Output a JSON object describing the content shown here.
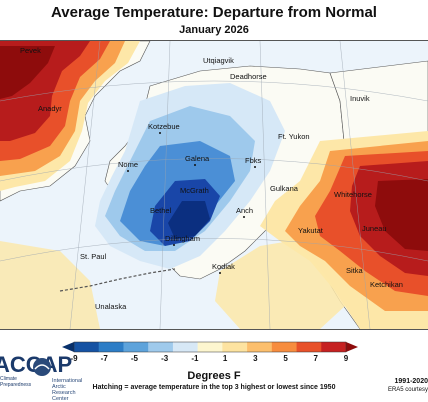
{
  "header": {
    "title": "Average Temperature: Departure from Normal",
    "subtitle": "January 2026"
  },
  "map": {
    "places": [
      "Pevek",
      "Anadyr",
      "Utqiagvik",
      "Deadhorse",
      "Inuvik",
      "Kotzebue",
      "Ft. Yukon",
      "Nome",
      "Galena",
      "Fbks",
      "McGrath",
      "Gulkana",
      "Whitehorse",
      "Bethel",
      "Anch",
      "Dillingham",
      "Yakutat",
      "Juneau",
      "St. Paul",
      "Kodiak",
      "Sitka",
      "Ketchikan",
      "Unalaska"
    ],
    "colors": {
      "ocean": "#ecf4fb",
      "neutral_land": "#fbfbf4",
      "warm_strong": "#b71c1c",
      "warm_mid": "#e8502a",
      "warm_light": "#f8a14e",
      "warm_pale": "#fde7a8",
      "cold_pale": "#d6e8f7",
      "cold_light": "#9ec9ec",
      "cold_mid": "#4b8fd6",
      "cold_strong": "#1946a8"
    }
  },
  "colorbar": {
    "ticks": [
      "-9",
      "-7",
      "-5",
      "-3",
      "-1",
      "1",
      "3",
      "5",
      "7",
      "9"
    ],
    "colors": [
      "#08306b",
      "#1552a3",
      "#2d7dc6",
      "#5ea3db",
      "#9fcaec",
      "#d7e8f6",
      "#fdf6cf",
      "#fde3a0",
      "#fcbf6d",
      "#f78d3f",
      "#e8512a",
      "#c62121",
      "#8e0c0c"
    ],
    "unit_label": "Degrees F",
    "note": "Hatching = average temperature in the top 3 highest or lowest since 1950"
  },
  "footer": {
    "acc_logo": "ACCAP",
    "acc_line1": "Climate",
    "acc_line2": "Preparedness",
    "iarc_line1": "International Arctic",
    "iarc_line2": "Research Center",
    "period": "1991-2020",
    "credit": "ERA5 courtesy"
  }
}
